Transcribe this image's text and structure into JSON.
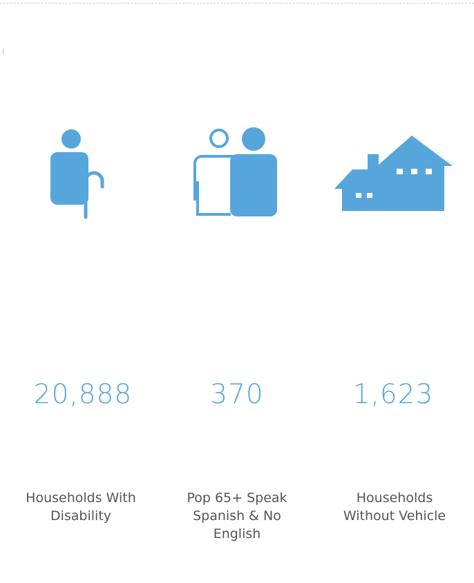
{
  "items": [
    {
      "value": "20,888",
      "label": "Households With Disability"
    },
    {
      "value": "370",
      "label": "Pop 65+ Speak Spanish & No English"
    },
    {
      "value": "1,623",
      "label": "Households Without Vehicle"
    }
  ]
}
